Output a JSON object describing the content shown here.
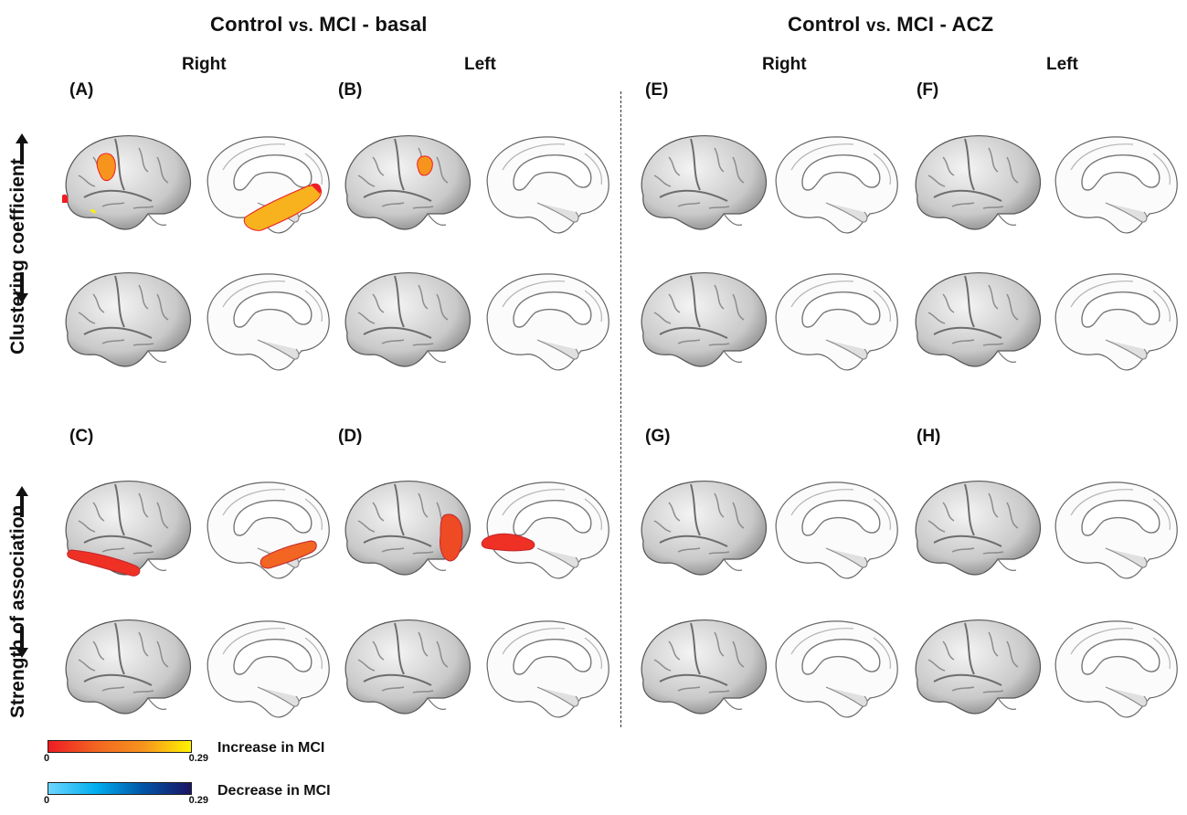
{
  "groups": [
    {
      "title_main": "Control",
      "title_vs": "vs.",
      "title_rest": "MCI - basal"
    },
    {
      "title_main": "Control",
      "title_vs": "vs.",
      "title_rest": "MCI - ACZ"
    }
  ],
  "hemispheres": {
    "right": "Right",
    "left": "Left"
  },
  "rows": {
    "top": "Clustering coefficient",
    "bottom": "Strength of association"
  },
  "panels": {
    "A": "(A)",
    "B": "(B)",
    "C": "(C)",
    "D": "(D)",
    "E": "(E)",
    "F": "(F)",
    "G": "(G)",
    "H": "(H)"
  },
  "legend": {
    "increase": {
      "label": "Increase in MCI",
      "min": "0",
      "max": "0.29",
      "colors": [
        "#ee1c24",
        "#f26522",
        "#f7941d",
        "#fff200"
      ]
    },
    "decrease": {
      "label": "Decrease in MCI",
      "min": "0",
      "max": "0.29",
      "colors": [
        "#6dd6ff",
        "#00aeef",
        "#0054a6",
        "#1b1464"
      ]
    }
  },
  "icons": {
    "up": "arrow-up-icon",
    "down": "arrow-down-icon"
  }
}
